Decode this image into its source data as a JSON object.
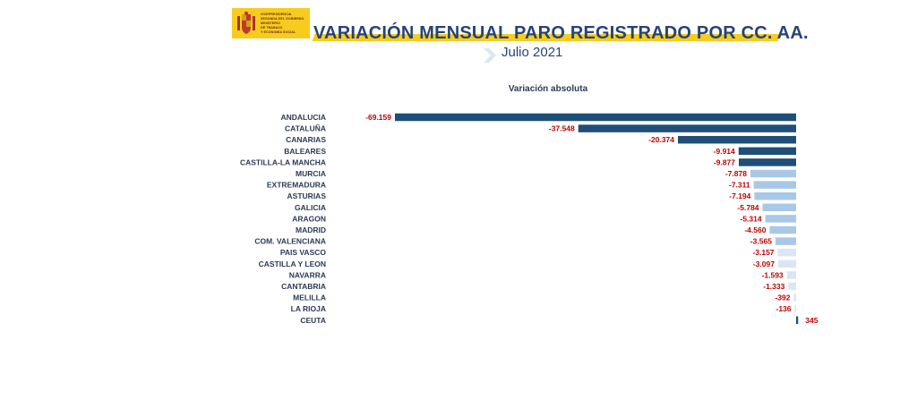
{
  "header": {
    "logo_lines": [
      "VICEPRESIDENCIA",
      "SEGUNDA DEL GOBIERNO",
      "MINISTERIO",
      "DE TRABAJO",
      "Y ECONOMÍA SOCIAL"
    ],
    "title": "VARIACIÓN MENSUAL PARO REGISTRADO POR CC. AA.",
    "subtitle": "Julio 2021"
  },
  "colors": {
    "accent": "#f7cc1e",
    "title": "#25437a",
    "bar_dark": "#1f4e79",
    "bar_light": "#a9c8e8",
    "bar_pale": "#dae6f3",
    "label_value": "#c00000"
  },
  "chart_data": {
    "type": "bar",
    "orientation": "horizontal",
    "title": "Variación absoluta",
    "categories": [
      "ANDALUCIA",
      "CATALUÑA",
      "CANARIAS",
      "BALEARES",
      "CASTILLA-LA MANCHA",
      "MURCIA",
      "EXTREMADURA",
      "ASTURIAS",
      "GALICIA",
      "ARAGON",
      "MADRID",
      "COM. VALENCIANA",
      "PAIS VASCO",
      "CASTILLA Y LEON",
      "NAVARRA",
      "CANTABRIA",
      "MELILLA",
      "LA RIOJA",
      "CEUTA"
    ],
    "values": [
      -69159,
      -37548,
      -20374,
      -9914,
      -9877,
      -7878,
      -7311,
      -7194,
      -5784,
      -5314,
      -4560,
      -3565,
      -3157,
      -3097,
      -1593,
      -1333,
      -392,
      -136,
      345
    ],
    "value_labels": [
      "-69.159",
      "-37.548",
      "-20.374",
      "-9.914",
      "-9.877",
      "-7.878",
      "-7.311",
      "-7.194",
      "-5.784",
      "-5.314",
      "-4.560",
      "-3.565",
      "-3.157",
      "-3.097",
      "-1.593",
      "-1.333",
      "-392",
      "-136",
      "345"
    ],
    "shades": [
      "dark",
      "dark",
      "dark",
      "dark",
      "dark",
      "light",
      "light",
      "light",
      "light",
      "light",
      "light",
      "light",
      "pale",
      "pale",
      "pale",
      "pale",
      "pale",
      "pale",
      "dark"
    ],
    "xlim": [
      -70000,
      1000
    ],
    "grid": false,
    "legend": "none"
  }
}
